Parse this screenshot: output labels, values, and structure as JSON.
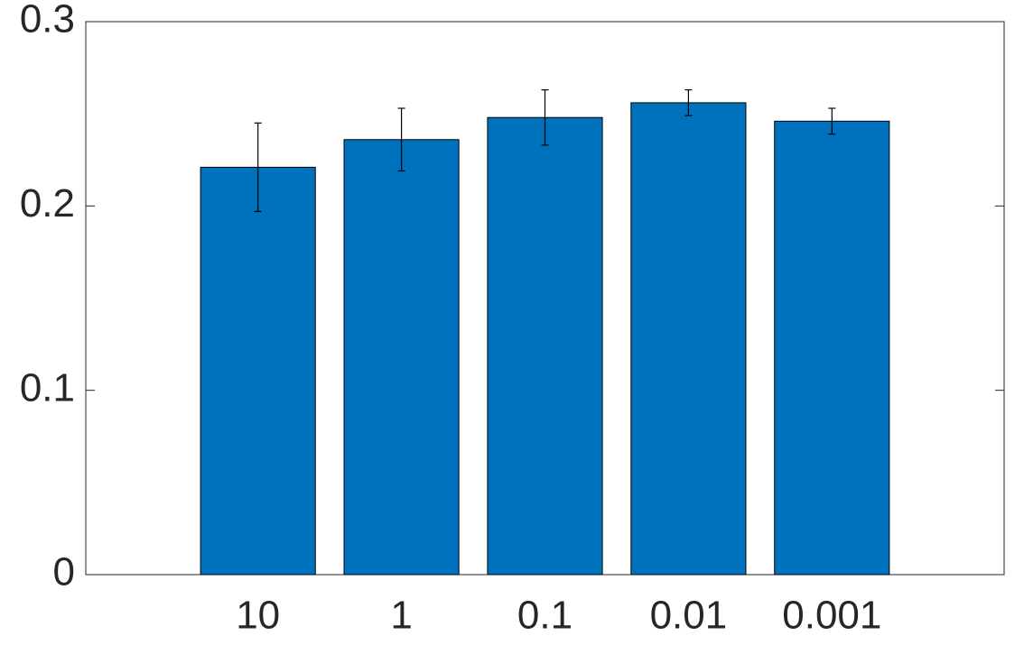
{
  "chart_data": {
    "type": "bar",
    "categories": [
      "10",
      "1",
      "0.1",
      "0.01",
      "0.001"
    ],
    "values": [
      0.221,
      0.236,
      0.248,
      0.256,
      0.246
    ],
    "errors": [
      0.024,
      0.017,
      0.015,
      0.007,
      0.007
    ],
    "color": "#0072bd",
    "ylim": [
      0,
      0.3
    ],
    "yticks": [
      0,
      0.1,
      0.2,
      0.3
    ],
    "grid": false
  }
}
